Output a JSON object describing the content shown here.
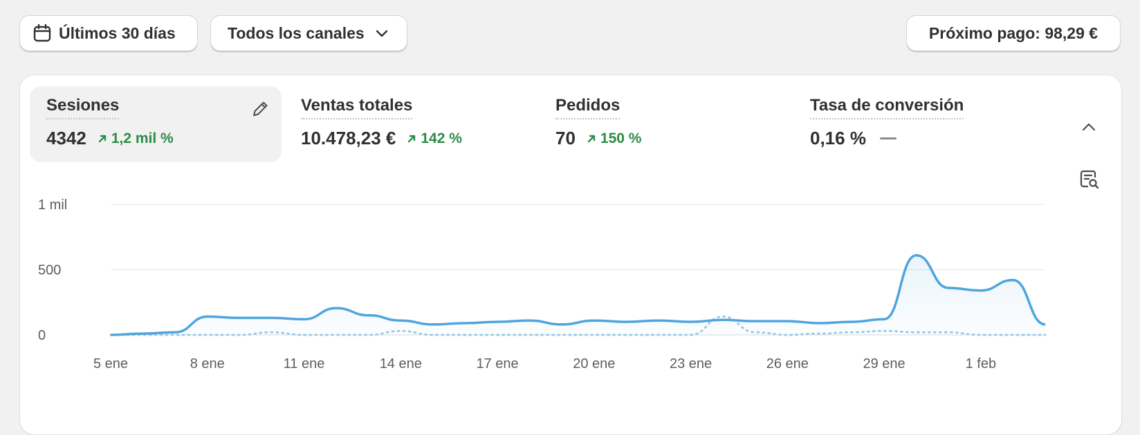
{
  "toolbar": {
    "date_range": "Últimos 30 días",
    "date_icon": "calendar-icon",
    "channel": "Todos los canales",
    "channel_icon": "chevron-down-icon",
    "payout": "Próximo pago: 98,29 €"
  },
  "metrics": [
    {
      "label": "Sesiones",
      "value": "4342",
      "change": "1,2 mil %",
      "trend": "up",
      "active": true
    },
    {
      "label": "Ventas totales",
      "value": "10.478,23 €",
      "change": "142 %",
      "trend": "up"
    },
    {
      "label": "Pedidos",
      "value": "70",
      "change": "150 %",
      "trend": "up"
    },
    {
      "label": "Tasa de conversión",
      "value": "0,16 %",
      "change": "—",
      "trend": "flat"
    }
  ],
  "icons": {
    "edit": "pencil-icon",
    "collapse": "chevron-up-icon",
    "explore": "report-search-icon"
  },
  "colors": {
    "line": "#4ea5de",
    "positive": "#2e8b46",
    "grid": "#e6e6e6"
  },
  "chart_data": {
    "type": "line",
    "x_ticks": [
      "5 ene",
      "8 ene",
      "11 ene",
      "14 ene",
      "17 ene",
      "20 ene",
      "23 ene",
      "26 ene",
      "29 ene",
      "1 feb"
    ],
    "y_ticks": [
      "0",
      "500",
      "1 mil"
    ],
    "ylim": [
      0,
      1000
    ],
    "x": [
      "5 ene",
      "6 ene",
      "7 ene",
      "8 ene",
      "9 ene",
      "10 ene",
      "11 ene",
      "12 ene",
      "13 ene",
      "14 ene",
      "15 ene",
      "16 ene",
      "17 ene",
      "18 ene",
      "19 ene",
      "20 ene",
      "21 ene",
      "22 ene",
      "23 ene",
      "24 ene",
      "25 ene",
      "26 ene",
      "27 ene",
      "28 ene",
      "29 ene",
      "30 ene",
      "31 ene",
      "1 feb",
      "2 feb",
      "3 feb"
    ],
    "series": [
      {
        "style": "solid",
        "values": [
          0,
          10,
          20,
          140,
          130,
          130,
          120,
          205,
          150,
          110,
          80,
          90,
          100,
          110,
          80,
          110,
          100,
          110,
          100,
          115,
          105,
          105,
          90,
          100,
          120,
          610,
          360,
          340,
          420,
          80
        ]
      },
      {
        "style": "dotted",
        "values": [
          0,
          0,
          0,
          0,
          0,
          20,
          0,
          0,
          0,
          30,
          0,
          0,
          0,
          0,
          0,
          0,
          0,
          0,
          0,
          140,
          20,
          0,
          10,
          20,
          30,
          20,
          20,
          0,
          0,
          0
        ]
      }
    ]
  }
}
